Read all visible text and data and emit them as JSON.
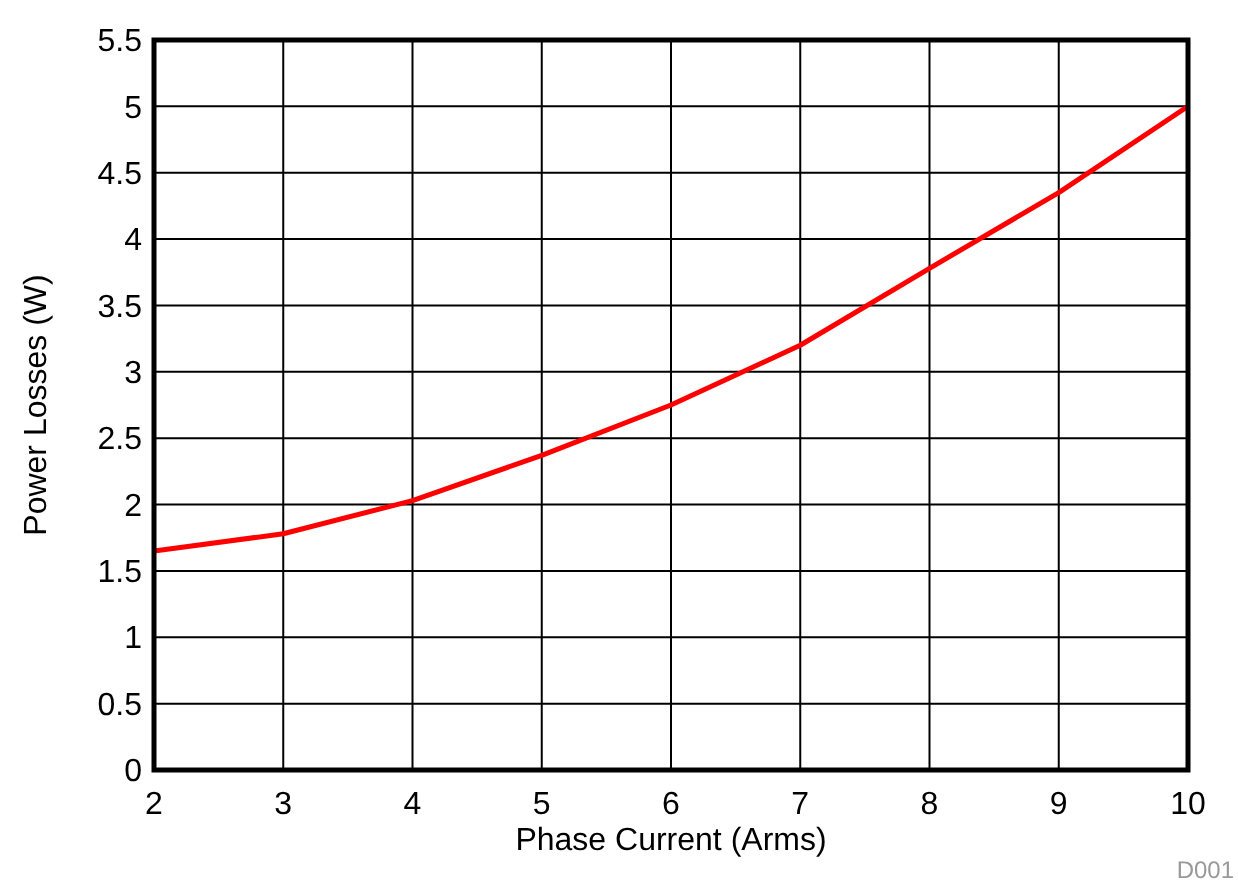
{
  "chart_data": {
    "type": "line",
    "xlabel": "Phase Current (Arms)",
    "ylabel": "Power Losses (W)",
    "x": [
      2,
      3,
      4,
      5,
      6,
      7,
      8,
      9,
      10
    ],
    "series": [
      {
        "color": "#ff0000",
        "values": [
          1.65,
          1.78,
          2.03,
          2.37,
          2.75,
          3.2,
          3.78,
          4.35,
          5.0
        ]
      }
    ],
    "xlim": [
      2,
      10
    ],
    "xticks": [
      2,
      3,
      4,
      5,
      6,
      7,
      8,
      9,
      10
    ],
    "ylim": [
      0,
      5.5
    ],
    "yticks": [
      0,
      {
        "value": 0.5,
        "label": "0.5"
      },
      1,
      {
        "value": 1.5,
        "label": "1.5"
      },
      2,
      {
        "value": 2.5,
        "label": "2.5"
      },
      3,
      {
        "value": 3.5,
        "label": "3.5"
      },
      4,
      {
        "value": 4.5,
        "label": "4.5"
      },
      5,
      {
        "value": 5.5,
        "label": "5.5"
      }
    ],
    "grid": true,
    "marker": "none",
    "line_style": "solid",
    "annotations": [
      "D001"
    ]
  }
}
